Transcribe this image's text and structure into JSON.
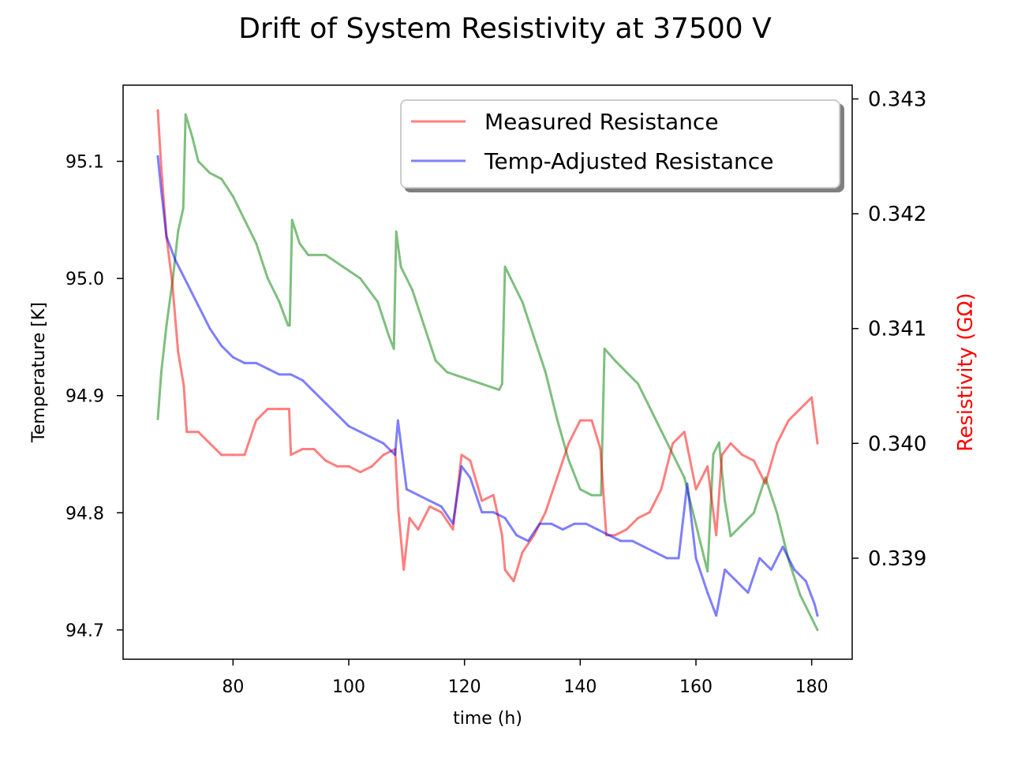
{
  "chart_data": {
    "type": "line",
    "title": "Drift of System Resistivity at 37500 V",
    "xlabel": "time (h)",
    "ylabel_left": "Temperature [K]",
    "ylabel_right": "Resistivity (GΩ)",
    "xlim": [
      61,
      187
    ],
    "ylim_left": [
      94.675,
      95.165
    ],
    "ylim_right": [
      0.33812,
      0.34312
    ],
    "xticks": [
      80,
      100,
      120,
      140,
      160,
      180
    ],
    "yticks_left": [
      94.7,
      94.8,
      94.9,
      95.0,
      95.1
    ],
    "yticks_right": [
      0.339,
      0.34,
      0.341,
      0.342,
      0.343
    ],
    "xtick_labels": [
      "80",
      "100",
      "120",
      "140",
      "160",
      "180"
    ],
    "ytick_labels_left": [
      "94.7",
      "94.8",
      "94.9",
      "95.0",
      "95.1"
    ],
    "ytick_labels_right": [
      "0.339",
      "0.340",
      "0.341",
      "0.342",
      "0.343"
    ],
    "legend": {
      "placement": "top-right",
      "entries": [
        {
          "label": "Measured Resistance",
          "color": "#ff0000",
          "alpha": 0.5
        },
        {
          "label": "Temp-Adjusted Resistance",
          "color": "#0000ff",
          "alpha": 0.5
        }
      ]
    },
    "colors": {
      "temperature": "#008000",
      "measured": "#ff0000",
      "adjusted": "#0000ff"
    },
    "series": [
      {
        "axis": "left",
        "color": "#008000",
        "alpha": 0.5,
        "points": [
          [
            67,
            94.88
          ],
          [
            67.6,
            94.92
          ],
          [
            68.5,
            94.96
          ],
          [
            69.6,
            95.0
          ],
          [
            70.5,
            95.04
          ],
          [
            71.4,
            95.06
          ],
          [
            71.8,
            95.14
          ],
          [
            73,
            95.12
          ],
          [
            74,
            95.1
          ],
          [
            76,
            95.09
          ],
          [
            78,
            95.085
          ],
          [
            80,
            95.07
          ],
          [
            82,
            95.05
          ],
          [
            84,
            95.03
          ],
          [
            86,
            95.0
          ],
          [
            88,
            94.98
          ],
          [
            89.5,
            94.96
          ],
          [
            89.8,
            94.96
          ],
          [
            90.2,
            95.05
          ],
          [
            91.5,
            95.03
          ],
          [
            93,
            95.02
          ],
          [
            96,
            95.02
          ],
          [
            99,
            95.01
          ],
          [
            102,
            95.0
          ],
          [
            105,
            94.98
          ],
          [
            107,
            94.95
          ],
          [
            107.8,
            94.94
          ],
          [
            108.2,
            95.04
          ],
          [
            109,
            95.01
          ],
          [
            111,
            94.99
          ],
          [
            113,
            94.96
          ],
          [
            115,
            94.93
          ],
          [
            117,
            94.92
          ],
          [
            120,
            94.915
          ],
          [
            123,
            94.91
          ],
          [
            126,
            94.905
          ],
          [
            126.5,
            94.91
          ],
          [
            127,
            95.01
          ],
          [
            128,
            95.0
          ],
          [
            130,
            94.98
          ],
          [
            132,
            94.95
          ],
          [
            134,
            94.92
          ],
          [
            136,
            94.88
          ],
          [
            138,
            94.845
          ],
          [
            140,
            94.82
          ],
          [
            142,
            94.815
          ],
          [
            143.6,
            94.815
          ],
          [
            144.2,
            94.94
          ],
          [
            146,
            94.93
          ],
          [
            148,
            94.92
          ],
          [
            150,
            94.91
          ],
          [
            152,
            94.89
          ],
          [
            154,
            94.87
          ],
          [
            156,
            94.85
          ],
          [
            158,
            94.83
          ],
          [
            160,
            94.79
          ],
          [
            162,
            94.75
          ],
          [
            163,
            94.85
          ],
          [
            164,
            94.86
          ],
          [
            165,
            94.81
          ],
          [
            166,
            94.78
          ],
          [
            168,
            94.79
          ],
          [
            170,
            94.8
          ],
          [
            172,
            94.83
          ],
          [
            174,
            94.8
          ],
          [
            176,
            94.76
          ],
          [
            178,
            94.73
          ],
          [
            180,
            94.71
          ],
          [
            181,
            94.7
          ]
        ]
      },
      {
        "name": "Measured Resistance",
        "axis": "right",
        "color": "#ff0000",
        "alpha": 0.5,
        "points": [
          [
            67,
            0.3429
          ],
          [
            67.6,
            0.3424
          ],
          [
            68.5,
            0.3418
          ],
          [
            69.5,
            0.3414
          ],
          [
            70.5,
            0.3408
          ],
          [
            71.5,
            0.3405
          ],
          [
            72,
            0.3401
          ],
          [
            74,
            0.3401
          ],
          [
            76,
            0.34
          ],
          [
            78,
            0.3399
          ],
          [
            80,
            0.3399
          ],
          [
            82,
            0.3399
          ],
          [
            84,
            0.3402
          ],
          [
            86,
            0.3403
          ],
          [
            88,
            0.3403
          ],
          [
            89.7,
            0.3403
          ],
          [
            90,
            0.3399
          ],
          [
            92,
            0.33995
          ],
          [
            94,
            0.33995
          ],
          [
            96,
            0.33985
          ],
          [
            98,
            0.3398
          ],
          [
            100,
            0.3398
          ],
          [
            102,
            0.33975
          ],
          [
            104,
            0.3398
          ],
          [
            106,
            0.3399
          ],
          [
            108,
            0.33995
          ],
          [
            108.6,
            0.3394
          ],
          [
            109.5,
            0.3389
          ],
          [
            110.5,
            0.33935
          ],
          [
            112,
            0.33925
          ],
          [
            114,
            0.33945
          ],
          [
            116,
            0.3394
          ],
          [
            118,
            0.33925
          ],
          [
            119.5,
            0.3399
          ],
          [
            121,
            0.33985
          ],
          [
            123,
            0.3395
          ],
          [
            125,
            0.33955
          ],
          [
            126.5,
            0.3392
          ],
          [
            127,
            0.3389
          ],
          [
            128.5,
            0.3388
          ],
          [
            130,
            0.33905
          ],
          [
            132,
            0.3392
          ],
          [
            134,
            0.3394
          ],
          [
            136,
            0.3397
          ],
          [
            138,
            0.34
          ],
          [
            140,
            0.3402
          ],
          [
            142,
            0.3402
          ],
          [
            143.5,
            0.33995
          ],
          [
            144.5,
            0.3392
          ],
          [
            146,
            0.3392
          ],
          [
            148,
            0.33925
          ],
          [
            150,
            0.33935
          ],
          [
            152,
            0.3394
          ],
          [
            154,
            0.3396
          ],
          [
            156,
            0.34
          ],
          [
            158,
            0.3401
          ],
          [
            160,
            0.3396
          ],
          [
            162,
            0.3398
          ],
          [
            163.5,
            0.3392
          ],
          [
            164.5,
            0.3399
          ],
          [
            166,
            0.34
          ],
          [
            168,
            0.3399
          ],
          [
            170,
            0.33985
          ],
          [
            172,
            0.33965
          ],
          [
            174,
            0.34
          ],
          [
            176,
            0.3402
          ],
          [
            178,
            0.3403
          ],
          [
            180,
            0.3404
          ],
          [
            181,
            0.34
          ]
        ]
      },
      {
        "name": "Temp-Adjusted Resistance",
        "axis": "right",
        "color": "#0000ff",
        "alpha": 0.5,
        "points": [
          [
            67,
            0.3425
          ],
          [
            67.6,
            0.3422
          ],
          [
            68.5,
            0.3418
          ],
          [
            70,
            0.3416
          ],
          [
            72,
            0.3414
          ],
          [
            74,
            0.3412
          ],
          [
            76,
            0.341
          ],
          [
            78,
            0.34085
          ],
          [
            80,
            0.34075
          ],
          [
            82,
            0.3407
          ],
          [
            84,
            0.3407
          ],
          [
            86,
            0.34065
          ],
          [
            88,
            0.3406
          ],
          [
            90,
            0.3406
          ],
          [
            92,
            0.34055
          ],
          [
            94,
            0.34045
          ],
          [
            96,
            0.34035
          ],
          [
            98,
            0.34025
          ],
          [
            100,
            0.34015
          ],
          [
            102,
            0.3401
          ],
          [
            104,
            0.34005
          ],
          [
            106,
            0.34
          ],
          [
            108,
            0.3399
          ],
          [
            108.5,
            0.3402
          ],
          [
            110,
            0.3396
          ],
          [
            112,
            0.33955
          ],
          [
            114,
            0.3395
          ],
          [
            116,
            0.33945
          ],
          [
            118,
            0.3393
          ],
          [
            119.5,
            0.3398
          ],
          [
            121,
            0.3397
          ],
          [
            123,
            0.3394
          ],
          [
            125,
            0.3394
          ],
          [
            127,
            0.33935
          ],
          [
            129,
            0.3392
          ],
          [
            131,
            0.33915
          ],
          [
            133,
            0.3393
          ],
          [
            135,
            0.3393
          ],
          [
            137,
            0.33925
          ],
          [
            139,
            0.3393
          ],
          [
            141,
            0.3393
          ],
          [
            143,
            0.33925
          ],
          [
            145,
            0.3392
          ],
          [
            147,
            0.33915
          ],
          [
            149,
            0.33915
          ],
          [
            151,
            0.3391
          ],
          [
            153,
            0.33905
          ],
          [
            155,
            0.339
          ],
          [
            157,
            0.339
          ],
          [
            158.5,
            0.33965
          ],
          [
            160,
            0.339
          ],
          [
            162,
            0.3387
          ],
          [
            163.5,
            0.3385
          ],
          [
            165,
            0.3389
          ],
          [
            167,
            0.3388
          ],
          [
            169,
            0.3387
          ],
          [
            171,
            0.339
          ],
          [
            173,
            0.3389
          ],
          [
            175,
            0.3391
          ],
          [
            177,
            0.3389
          ],
          [
            179,
            0.3388
          ],
          [
            180.5,
            0.3386
          ],
          [
            181,
            0.3385
          ]
        ]
      }
    ]
  }
}
